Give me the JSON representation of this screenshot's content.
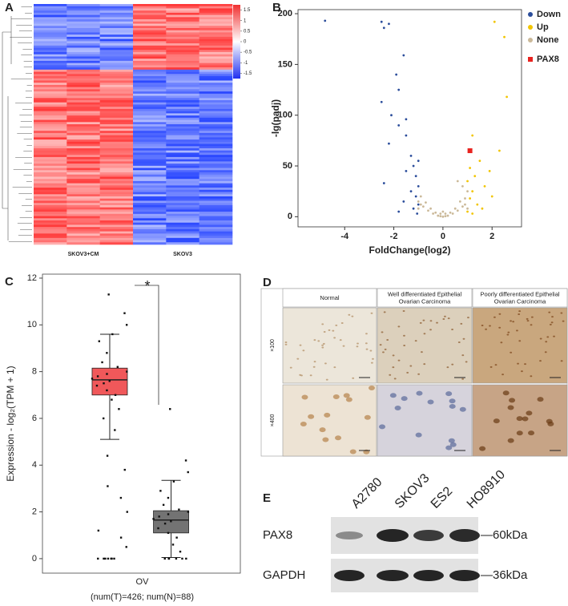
{
  "panel_labels": [
    "A",
    "B",
    "C",
    "D",
    "E"
  ],
  "chart_data": [
    {
      "type": "heatmap",
      "column_labels": [
        "SKOV3+CM",
        "SKOV3"
      ],
      "colorbar_lim": [
        -1.75,
        1.75
      ],
      "colorbar_ticks": [
        1.5,
        1,
        0.5,
        0,
        -0.5,
        -1,
        -1.5
      ]
    },
    {
      "type": "scatter",
      "xlabel": "FoldChange(log2)",
      "ylabel": "-lg(padj)",
      "xlim": [
        -5.9,
        3.2
      ],
      "ylim": [
        -10,
        204
      ],
      "xticks": [
        -4,
        -2,
        0,
        2
      ],
      "yticks": [
        0,
        50,
        100,
        150,
        200
      ],
      "legend": "right",
      "series": [
        {
          "name": "Down",
          "color": "#2b4d9b",
          "marker": "circle",
          "x": [
            -4.8,
            -2.5,
            -2.2,
            -2.4,
            -1.6,
            -1.9,
            -1.8,
            -2.5,
            -2.1,
            -1.5,
            -1.8,
            -1.5,
            -2.2,
            -1.3,
            -1.0,
            -1.2,
            -1.5,
            -1.1,
            -2.4,
            -1.0,
            -1.3,
            -1.1,
            -1.6,
            -1.0,
            -1.2,
            -1.8,
            -1.05
          ],
          "values": [
            193,
            192,
            190,
            186,
            159,
            140,
            125,
            113,
            100,
            96,
            90,
            80,
            72,
            60,
            55,
            50,
            45,
            40,
            33,
            30,
            25,
            20,
            15,
            12,
            8,
            5,
            3
          ]
        },
        {
          "name": "Up",
          "color": "#f2c500",
          "marker": "circle",
          "x": [
            2.1,
            2.5,
            2.6,
            1.2,
            2.3,
            1.5,
            1.1,
            1.9,
            1.3,
            1.0,
            1.7,
            1.2,
            2.0,
            1.1,
            1.4,
            1.6,
            1.0,
            1.2
          ],
          "values": [
            192,
            177,
            118,
            80,
            65,
            55,
            48,
            45,
            40,
            35,
            30,
            25,
            20,
            18,
            12,
            8,
            5,
            3
          ]
        },
        {
          "name": "None",
          "color": "#cbb999",
          "marker": "circle",
          "x": [
            -1,
            -0.9,
            -0.8,
            -0.6,
            -0.4,
            -0.2,
            0,
            0.2,
            0.4,
            0.6,
            0.8,
            0.9,
            1.0,
            -0.7,
            0.7,
            -0.5,
            0.5,
            -0.3,
            0.3,
            -0.1,
            0.1,
            -0.9,
            0.9,
            0.8,
            0.6,
            -1,
            1,
            0.1,
            -0.1,
            0
          ],
          "values": [
            15,
            20,
            10,
            6,
            3,
            1,
            0,
            1,
            3,
            6,
            10,
            18,
            25,
            14,
            15,
            8,
            8,
            4,
            4,
            0.5,
            0.5,
            12,
            12,
            30,
            35,
            8,
            8,
            3,
            3,
            5
          ]
        },
        {
          "name": "PAX8",
          "color": "#e8231f",
          "marker": "square",
          "x": [
            1.1
          ],
          "values": [
            65
          ]
        }
      ]
    },
    {
      "type": "box",
      "ylabel": "Expression - log₂(TPM + 1)",
      "categories": [
        "OV"
      ],
      "xlabel": "(num(T)=426; num(N)=88)",
      "annotation": "*",
      "ylim": [
        -0.62,
        12.17
      ],
      "yticks": [
        0,
        2,
        4,
        6,
        8,
        10,
        12
      ],
      "boxes": [
        {
          "color": "#f0585a",
          "whisker_low": 5.1,
          "q1": 7.0,
          "median": 7.65,
          "q3": 8.15,
          "whisker_high": 9.6,
          "points": [
            0,
            0,
            0,
            0,
            0,
            0,
            0,
            0.5,
            0.9,
            1.2,
            2.0,
            2.6,
            3.1,
            3.8,
            4.4,
            5.5,
            6.0,
            6.4,
            6.8,
            7.0,
            7.2,
            7.4,
            7.5,
            7.6,
            7.7,
            7.8,
            7.9,
            8.0,
            8.2,
            8.4,
            8.8,
            9.3,
            9.6,
            10.0,
            10.5,
            11.3
          ]
        },
        {
          "color": "#737373",
          "whisker_low": 0.05,
          "q1": 1.1,
          "median": 1.65,
          "q3": 2.05,
          "whisker_high": 3.35,
          "points": [
            0,
            0,
            0,
            0,
            0,
            0,
            0.3,
            0.6,
            0.9,
            1.1,
            1.3,
            1.5,
            1.6,
            1.7,
            1.8,
            1.9,
            2.0,
            2.1,
            2.3,
            2.6,
            2.9,
            3.3,
            3.7,
            4.2,
            6.4
          ]
        }
      ]
    }
  ],
  "ihc": {
    "columns": [
      [
        "Normal"
      ],
      [
        "Well differentiated  Epithelial",
        "Ovarian Carcinoma"
      ],
      [
        "Poorly differentiated  Epithelial",
        "Ovarian Carcinoma"
      ]
    ],
    "rows": [
      "×100",
      "×400"
    ]
  },
  "western_blot": {
    "lanes": [
      "A2780",
      "SKOV3",
      "ES2",
      "HO8910"
    ],
    "rows": [
      {
        "label": "PAX8",
        "marker": "—60kDa"
      },
      {
        "label": "GAPDH",
        "marker": "—36kDa"
      }
    ]
  }
}
